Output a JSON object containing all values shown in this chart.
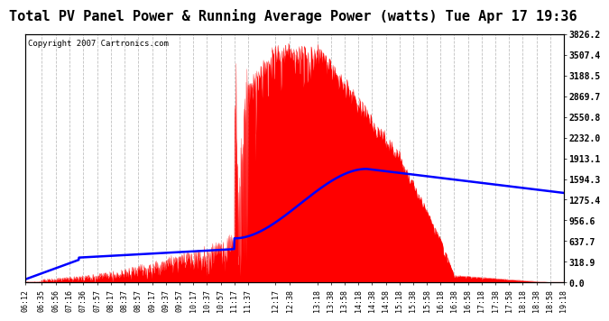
{
  "title": "Total PV Panel Power & Running Average Power (watts) Tue Apr 17 19:36",
  "copyright": "Copyright 2007 Cartronics.com",
  "y_max": 3826.2,
  "y_ticks": [
    0.0,
    318.9,
    637.7,
    956.6,
    1275.4,
    1594.3,
    1913.1,
    2232.0,
    2550.8,
    2869.7,
    3188.5,
    3507.4,
    3826.2
  ],
  "background_color": "#ffffff",
  "plot_bg_color": "#ffffff",
  "grid_color": "#b0b0b0",
  "fill_color": "#ff0000",
  "line_color": "#0000ff",
  "title_fontsize": 11,
  "copyright_fontsize": 6.5,
  "x_label_fontsize": 6,
  "y_label_fontsize": 7
}
